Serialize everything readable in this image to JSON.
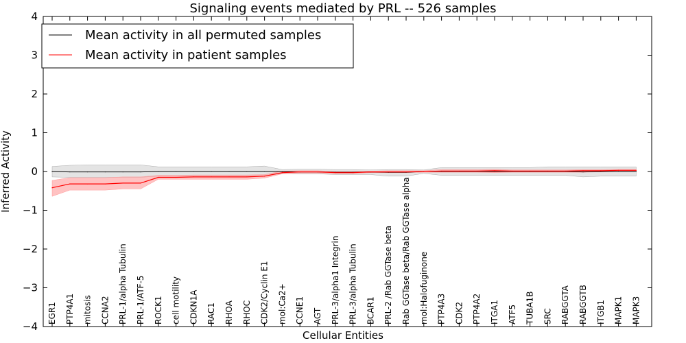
{
  "chart_data": {
    "type": "line",
    "title": "Signaling events mediated by PRL -- 526 samples",
    "xlabel": "Cellular Entities",
    "ylabel": "Inferred Activity",
    "ylim": [
      -4,
      4
    ],
    "yticks": [
      -4,
      -3,
      -2,
      -1,
      0,
      1,
      2,
      3,
      4
    ],
    "ytick_labels": [
      "−4",
      "−3",
      "−2",
      "−1",
      "0",
      "1",
      "2",
      "3",
      "4"
    ],
    "categories": [
      "EGR1",
      "PTP4A1",
      "mitosis",
      "CCNA2",
      "PRL-1/alpha Tubulin",
      "PRL-1/ATF-5",
      "ROCK1",
      "cell motility",
      "CDKN1A",
      "RAC1",
      "RHOA",
      "RHOC",
      "CDK2/Cyclin E1",
      "mol:Ca2+",
      "CCNE1",
      "AGT",
      "PRL-3/alpha1 Integrin",
      "PRL-3/alpha Tubulin",
      "BCAR1",
      "PRL-2 /Rab GGTase beta",
      "Rab GGTase beta/Rab GGTase alpha",
      "mol:Halofuginone",
      "PTP4A3",
      "CDK2",
      "PTP4A2",
      "ITGA1",
      "ATF5",
      "TUBA1B",
      "SRC",
      "RABGGTA",
      "RABGGTB",
      "ITGB1",
      "MAPK1",
      "MAPK3"
    ],
    "legend_position": "top-left",
    "series": [
      {
        "name": "Mean activity in all permuted samples",
        "color": "#000000",
        "band_color": "#bbbbbb",
        "values": [
          0.0,
          -0.01,
          -0.01,
          -0.01,
          -0.01,
          -0.01,
          0.0,
          0.0,
          0.0,
          0.0,
          0.0,
          0.0,
          0.0,
          0.0,
          -0.01,
          -0.01,
          -0.02,
          -0.02,
          -0.01,
          -0.02,
          -0.02,
          0.0,
          0.0,
          0.0,
          0.0,
          0.0,
          0.0,
          0.0,
          0.0,
          0.0,
          -0.01,
          0.0,
          0.0,
          0.0
        ],
        "lower": [
          -0.14,
          -0.15,
          -0.15,
          -0.15,
          -0.15,
          -0.15,
          -0.12,
          -0.12,
          -0.12,
          -0.12,
          -0.12,
          -0.12,
          -0.12,
          -0.05,
          -0.06,
          -0.06,
          -0.08,
          -0.08,
          -0.08,
          -0.12,
          -0.12,
          -0.05,
          -0.1,
          -0.1,
          -0.1,
          -0.1,
          -0.1,
          -0.1,
          -0.1,
          -0.1,
          -0.14,
          -0.12,
          -0.12,
          -0.12
        ],
        "upper": [
          0.13,
          0.16,
          0.17,
          0.17,
          0.17,
          0.17,
          0.12,
          0.12,
          0.12,
          0.12,
          0.12,
          0.12,
          0.14,
          0.05,
          0.06,
          0.06,
          0.05,
          0.05,
          0.04,
          0.05,
          0.05,
          0.04,
          0.1,
          0.1,
          0.1,
          0.1,
          0.1,
          0.1,
          0.12,
          0.12,
          0.12,
          0.12,
          0.12,
          0.12
        ]
      },
      {
        "name": "Mean activity in patient samples",
        "color": "#ff0000",
        "band_color": "#ff9999",
        "values": [
          -0.42,
          -0.32,
          -0.32,
          -0.32,
          -0.3,
          -0.3,
          -0.15,
          -0.15,
          -0.14,
          -0.14,
          -0.14,
          -0.14,
          -0.12,
          -0.03,
          -0.01,
          -0.01,
          -0.03,
          -0.03,
          -0.01,
          -0.01,
          -0.01,
          0.0,
          0.01,
          0.01,
          0.01,
          0.02,
          0.01,
          0.01,
          0.01,
          0.01,
          0.02,
          0.02,
          0.03,
          0.03
        ],
        "lower": [
          -0.64,
          -0.48,
          -0.48,
          -0.48,
          -0.45,
          -0.45,
          -0.2,
          -0.2,
          -0.2,
          -0.2,
          -0.2,
          -0.2,
          -0.17,
          -0.06,
          -0.04,
          -0.04,
          -0.05,
          -0.05,
          -0.03,
          -0.03,
          -0.03,
          -0.02,
          -0.02,
          -0.02,
          -0.02,
          -0.03,
          -0.02,
          -0.02,
          -0.02,
          -0.02,
          -0.02,
          -0.01,
          0.0,
          0.0
        ],
        "upper": [
          -0.23,
          -0.16,
          -0.16,
          -0.16,
          -0.14,
          -0.14,
          -0.1,
          -0.1,
          -0.09,
          -0.09,
          -0.09,
          -0.09,
          -0.08,
          0.01,
          0.02,
          0.02,
          0.0,
          0.0,
          0.01,
          0.02,
          0.02,
          0.02,
          0.05,
          0.05,
          0.05,
          0.06,
          0.04,
          0.04,
          0.04,
          0.04,
          0.05,
          0.05,
          0.06,
          0.06
        ]
      }
    ]
  }
}
